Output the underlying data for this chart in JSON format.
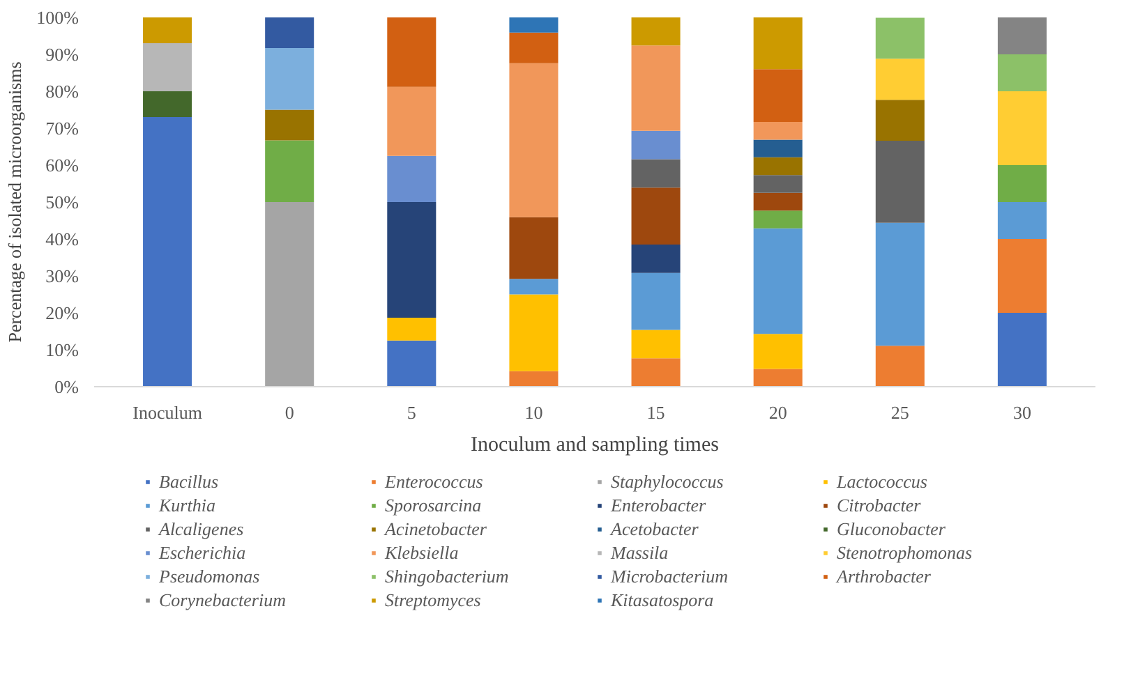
{
  "chart_data": {
    "type": "bar",
    "stacked": true,
    "xlabel": "Inoculum and sampling times",
    "ylabel": "Percentage of isolated microorganisms",
    "categories": [
      "Inoculum",
      "0",
      "5",
      "10",
      "15",
      "20",
      "25",
      "30"
    ],
    "ylim": [
      0,
      100
    ],
    "yticks": [
      {
        "value": 0,
        "label": "0%"
      },
      {
        "value": 10,
        "label": "10%"
      },
      {
        "value": 20,
        "label": "20%"
      },
      {
        "value": 30,
        "label": "30%"
      },
      {
        "value": 40,
        "label": "40%"
      },
      {
        "value": 50,
        "label": "50%"
      },
      {
        "value": 60,
        "label": "60%"
      },
      {
        "value": 70,
        "label": "70%"
      },
      {
        "value": 80,
        "label": "80%"
      },
      {
        "value": 90,
        "label": "90%"
      },
      {
        "value": 100,
        "label": "100%"
      }
    ],
    "grid": false,
    "legend": "bottom",
    "series": [
      {
        "name": "Bacillus",
        "color": "#4472c4",
        "values": [
          73,
          null,
          12.5,
          null,
          null,
          null,
          null,
          20
        ]
      },
      {
        "name": "Enterococcus",
        "color": "#ed7d31",
        "values": [
          null,
          null,
          null,
          4.2,
          7.7,
          4.8,
          11.1,
          20
        ]
      },
      {
        "name": "Staphylococcus",
        "color": "#a5a5a5",
        "values": [
          null,
          50,
          null,
          null,
          null,
          null,
          null,
          null
        ]
      },
      {
        "name": "Lactococcus",
        "color": "#ffc000",
        "values": [
          null,
          null,
          6.2,
          20.8,
          7.7,
          9.5,
          null,
          null
        ]
      },
      {
        "name": "Kurthia",
        "color": "#5b9bd5",
        "values": [
          null,
          null,
          null,
          4.2,
          15.4,
          28.6,
          33.3,
          10
        ]
      },
      {
        "name": "Sporosarcina",
        "color": "#70ad47",
        "values": [
          null,
          16.7,
          null,
          null,
          null,
          4.8,
          null,
          10
        ]
      },
      {
        "name": "Enterobacter",
        "color": "#264478",
        "values": [
          null,
          null,
          31.3,
          null,
          7.7,
          null,
          null,
          null
        ]
      },
      {
        "name": "Citrobacter",
        "color": "#9e480e",
        "values": [
          null,
          null,
          null,
          16.7,
          15.4,
          4.8,
          null,
          null
        ]
      },
      {
        "name": "Alcaligenes",
        "color": "#636363",
        "values": [
          null,
          null,
          null,
          null,
          7.7,
          4.8,
          22.2,
          null
        ]
      },
      {
        "name": "Acinetobacter",
        "color": "#997300",
        "values": [
          null,
          8.3,
          null,
          null,
          null,
          4.8,
          11.1,
          null
        ]
      },
      {
        "name": "Acetobacter",
        "color": "#255e91",
        "values": [
          null,
          null,
          null,
          null,
          null,
          4.8,
          null,
          null
        ]
      },
      {
        "name": "Gluconobacter",
        "color": "#43682b",
        "values": [
          7,
          null,
          null,
          null,
          null,
          null,
          null,
          null
        ]
      },
      {
        "name": "Escherichia",
        "color": "#698ed0",
        "values": [
          null,
          null,
          12.5,
          null,
          7.7,
          null,
          null,
          null
        ]
      },
      {
        "name": "Klebsiella",
        "color": "#f1975a",
        "values": [
          null,
          null,
          18.7,
          41.7,
          23.1,
          4.8,
          null,
          null
        ]
      },
      {
        "name": "Massila",
        "color": "#b7b7b7",
        "values": [
          13,
          null,
          null,
          null,
          null,
          null,
          null,
          null
        ]
      },
      {
        "name": "Stenotrophomonas",
        "color": "#ffcd33",
        "values": [
          null,
          null,
          null,
          null,
          null,
          null,
          11.1,
          20
        ]
      },
      {
        "name": "Pseudomonas",
        "color": "#7cafdd",
        "values": [
          null,
          16.7,
          null,
          null,
          null,
          null,
          null,
          null
        ]
      },
      {
        "name": "Shingobacterium",
        "color": "#8cc168",
        "values": [
          null,
          null,
          null,
          null,
          null,
          null,
          11.1,
          10
        ]
      },
      {
        "name": "Microbacterium",
        "color": "#335aa1",
        "values": [
          null,
          8.3,
          null,
          null,
          null,
          null,
          null,
          null
        ]
      },
      {
        "name": "Arthrobacter",
        "color": "#d26012",
        "values": [
          null,
          null,
          18.8,
          8.3,
          null,
          14.3,
          null,
          null
        ]
      },
      {
        "name": "Corynebacterium",
        "color": "#848484",
        "values": [
          null,
          null,
          null,
          null,
          null,
          null,
          null,
          10
        ]
      },
      {
        "name": "Streptomyces",
        "color": "#cc9a00",
        "values": [
          7,
          null,
          null,
          null,
          7.7,
          14.3,
          null,
          null
        ]
      },
      {
        "name": "Kitasatospora",
        "color": "#2e75b6",
        "values": [
          null,
          null,
          null,
          4.1,
          null,
          null,
          null,
          null
        ]
      }
    ]
  }
}
